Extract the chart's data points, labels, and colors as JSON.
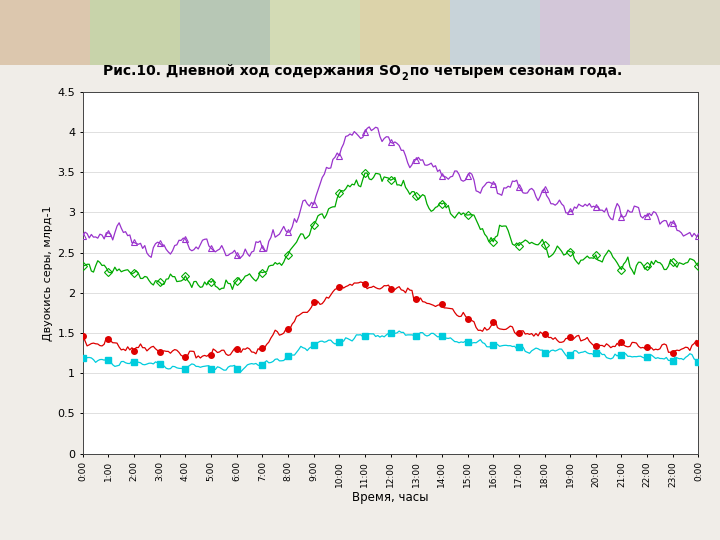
{
  "title_part1": "Рис.10. Дневной ход содержания SO",
  "title_part2": " по четырем сезонам года.",
  "xlabel": "Время, часы",
  "ylabel": "Двуокись серы, млрд-1",
  "ylim": [
    0,
    4.5
  ],
  "yticks": [
    0,
    0.5,
    1,
    1.5,
    2,
    2.5,
    3,
    3.5,
    4,
    4.5
  ],
  "winter_color": "#9933cc",
  "spring_color": "#00aa00",
  "summer_color": "#dd0000",
  "autumn_color": "#00ccdd",
  "bg_color": "#f0ede8",
  "plot_bg": "#ffffff",
  "header_color": "#d4c8a0",
  "n_points": 289
}
